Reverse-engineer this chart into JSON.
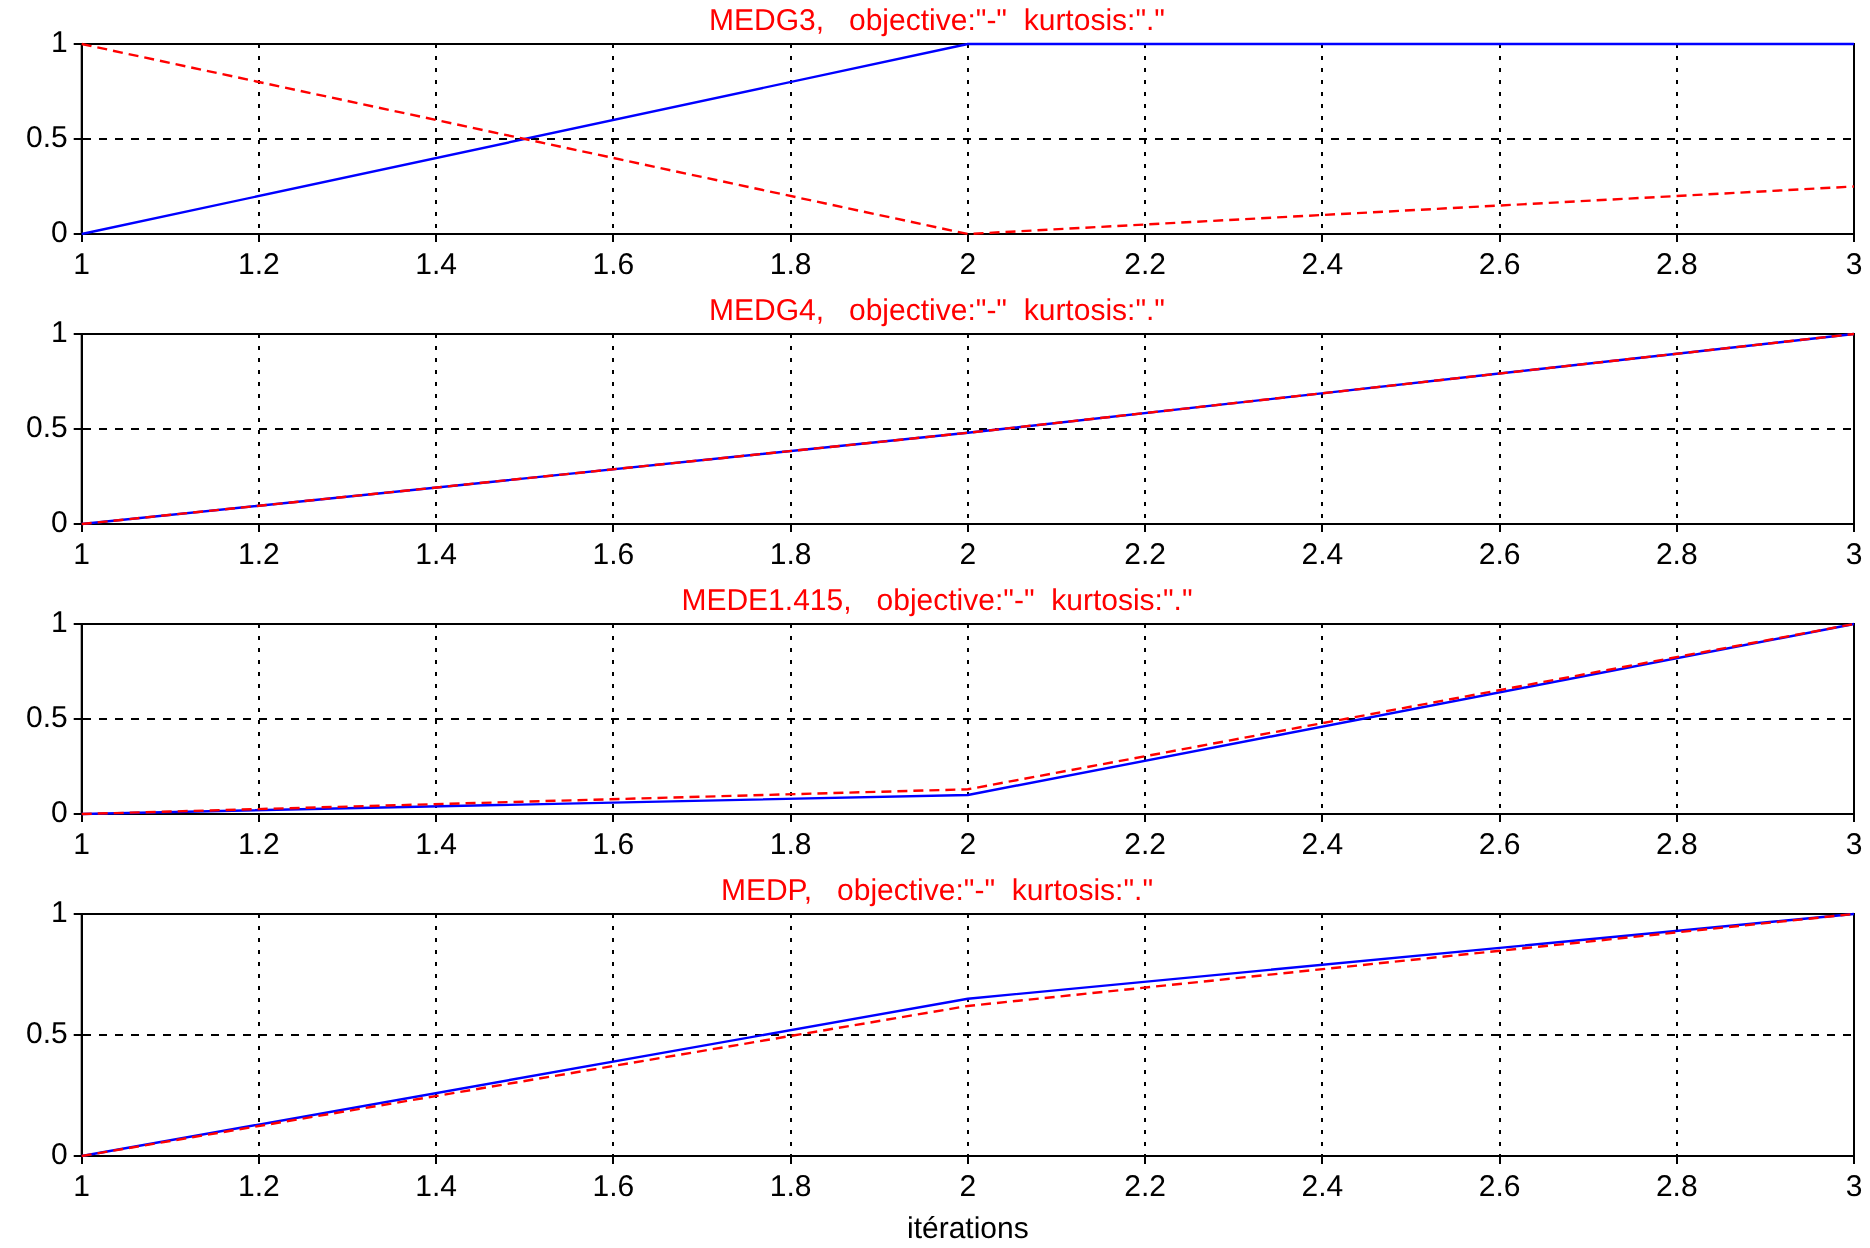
{
  "chart_data": [
    {
      "type": "line",
      "title": "MEDG3,   objective:\"-\"  kurtosis:\".\"",
      "x": [
        1,
        2,
        3
      ],
      "xlim": [
        1,
        3
      ],
      "xticks": [
        1,
        1.2,
        1.4,
        1.6,
        1.8,
        2,
        2.2,
        2.4,
        2.6,
        2.8,
        3
      ],
      "ylim": [
        0,
        1
      ],
      "yticks": [
        0,
        0.5,
        1
      ],
      "grid": true,
      "legend": false,
      "series": [
        {
          "color": "#0000ff",
          "line_style": "solid",
          "values": [
            0,
            1,
            1
          ]
        },
        {
          "color": "#ff0000",
          "line_style": "dashed",
          "values": [
            1,
            0,
            0.25
          ]
        }
      ]
    },
    {
      "type": "line",
      "title": "MEDG4,   objective:\"-\"  kurtosis:\".\"",
      "x": [
        1,
        2,
        3
      ],
      "xlim": [
        1,
        3
      ],
      "xticks": [
        1,
        1.2,
        1.4,
        1.6,
        1.8,
        2,
        2.2,
        2.4,
        2.6,
        2.8,
        3
      ],
      "ylim": [
        0,
        1
      ],
      "yticks": [
        0,
        0.5,
        1
      ],
      "grid": true,
      "legend": false,
      "series": [
        {
          "color": "#0000ff",
          "line_style": "solid",
          "values": [
            0,
            0.48,
            1
          ]
        },
        {
          "color": "#ff0000",
          "line_style": "dashed",
          "values": [
            0,
            0.48,
            1
          ]
        }
      ]
    },
    {
      "type": "line",
      "title": "MEDE1.415,   objective:\"-\"  kurtosis:\".\"",
      "x": [
        1,
        2,
        3
      ],
      "xlim": [
        1,
        3
      ],
      "xticks": [
        1,
        1.2,
        1.4,
        1.6,
        1.8,
        2,
        2.2,
        2.4,
        2.6,
        2.8,
        3
      ],
      "ylim": [
        0,
        1
      ],
      "yticks": [
        0,
        0.5,
        1
      ],
      "grid": true,
      "legend": false,
      "series": [
        {
          "color": "#0000ff",
          "line_style": "solid",
          "values": [
            0,
            0.1,
            1
          ]
        },
        {
          "color": "#ff0000",
          "line_style": "dashed",
          "values": [
            0,
            0.13,
            1
          ]
        }
      ]
    },
    {
      "type": "line",
      "title": "MEDP,   objective:\"-\"  kurtosis:\".\"",
      "xlabel": "itérations",
      "x": [
        1,
        2,
        3
      ],
      "xlim": [
        1,
        3
      ],
      "xticks": [
        1,
        1.2,
        1.4,
        1.6,
        1.8,
        2,
        2.2,
        2.4,
        2.6,
        2.8,
        3
      ],
      "ylim": [
        0,
        1
      ],
      "yticks": [
        0,
        0.5,
        1
      ],
      "grid": true,
      "legend": false,
      "series": [
        {
          "color": "#0000ff",
          "line_style": "solid",
          "values": [
            0,
            0.65,
            1
          ]
        },
        {
          "color": "#ff0000",
          "line_style": "dashed",
          "values": [
            0,
            0.62,
            1
          ]
        }
      ]
    }
  ]
}
